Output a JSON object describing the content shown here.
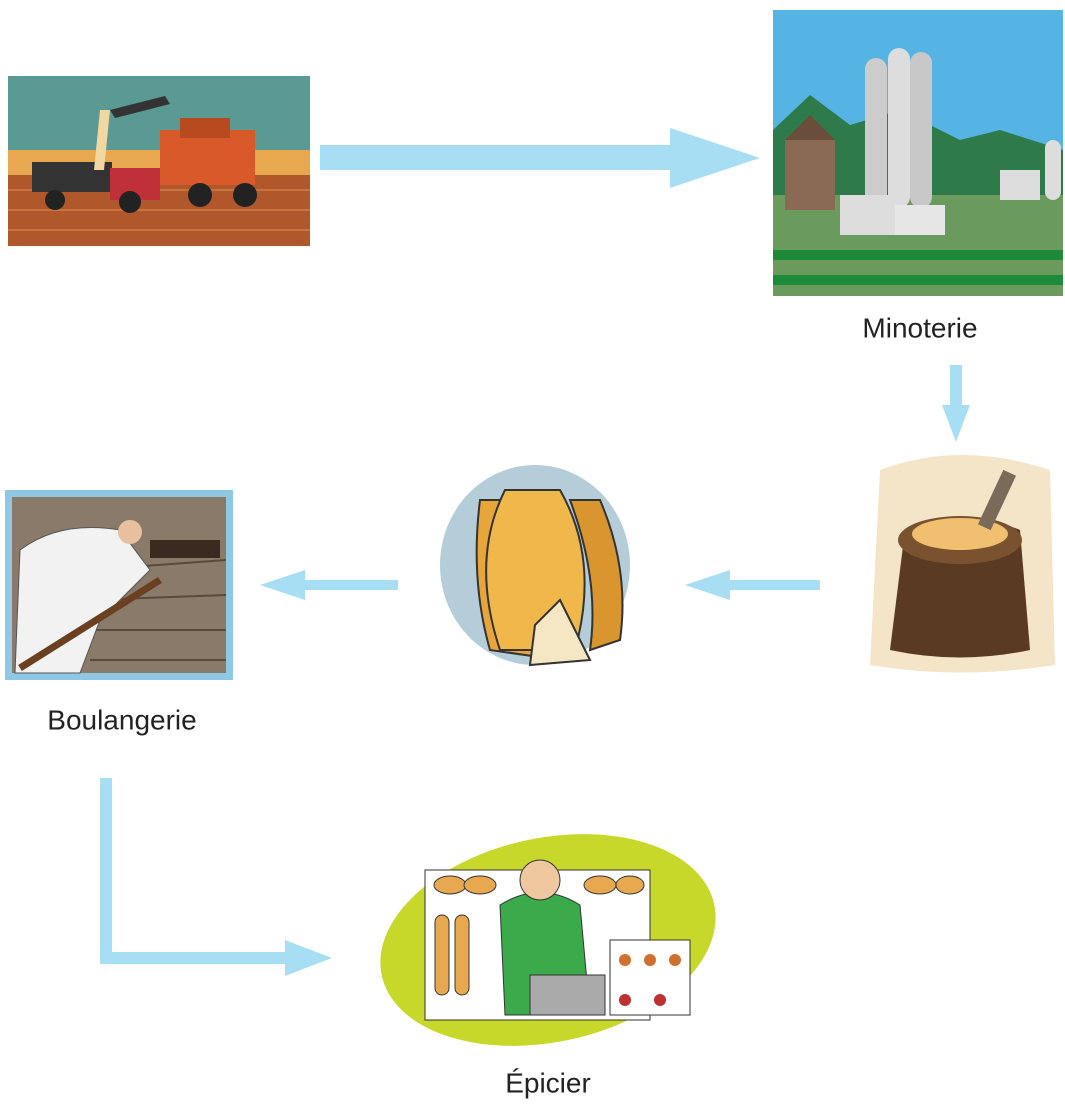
{
  "nodes": [
    {
      "label": "Minoterie"
    },
    {
      "label": "Boulangerie"
    },
    {
      "label": "Épicier"
    }
  ]
}
